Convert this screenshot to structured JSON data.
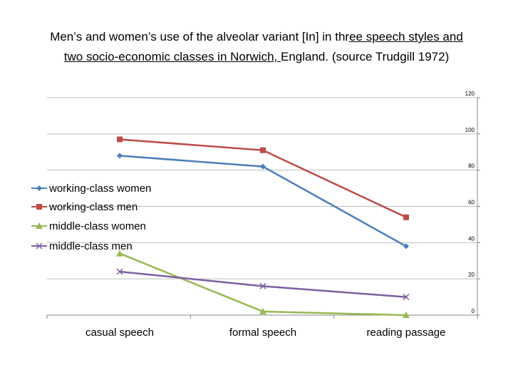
{
  "title_line1_a": "Men’s and women’s use of the alveolar variant [In] in thr",
  "title_line1_b": "ee speech styles and ",
  "title_line2_a": "two socio-economic classes in Norwich, ",
  "title_line2_b": "England. (source Trudgill 1972)",
  "chart_data": {
    "type": "line",
    "title": "Men’s and women’s use of the alveolar variant [In] in three speech styles and two socio-economic classes in Norwich, England. (source Trudgill 1972)",
    "categories": [
      "casual speech",
      "formal speech",
      "reading passage"
    ],
    "ylim": [
      0,
      120
    ],
    "yticks": [
      "0",
      "20",
      "40",
      "60",
      "80",
      "100",
      "120"
    ],
    "grid": true,
    "legend_position": "left",
    "series": [
      {
        "name": "working-class women",
        "values": [
          88,
          82,
          38
        ],
        "color": "#4a7ebb",
        "marker": "diamond"
      },
      {
        "name": "working-class men",
        "values": [
          97,
          91,
          54
        ],
        "color": "#be4b48",
        "marker": "square"
      },
      {
        "name": "middle-class women",
        "values": [
          34,
          2,
          0
        ],
        "color": "#98b954",
        "marker": "triangle"
      },
      {
        "name": "middle-class men",
        "values": [
          24,
          16,
          10
        ],
        "color": "#7d60a0",
        "marker": "x"
      }
    ]
  }
}
